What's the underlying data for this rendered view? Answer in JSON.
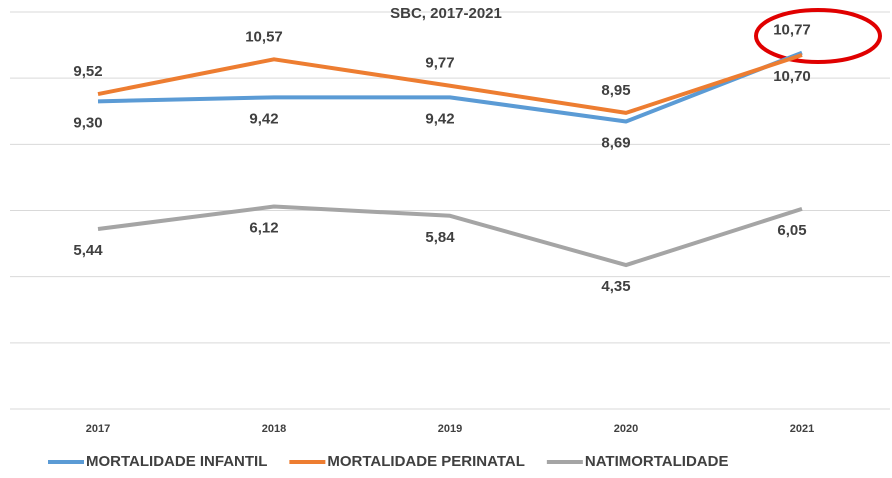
{
  "chart_data": {
    "type": "line",
    "title": "SBC, 2017-2021",
    "categories": [
      "2017",
      "2018",
      "2019",
      "2020",
      "2021"
    ],
    "series": [
      {
        "name": "MORTALIDADE INFANTIL",
        "color": "#5b9bd5",
        "values": [
          9.3,
          9.42,
          9.42,
          8.69,
          10.77
        ],
        "value_labels": [
          "9,30",
          "9,42",
          "9,42",
          "8,69",
          "10,77"
        ]
      },
      {
        "name": "MORTALIDADE PERINATAL",
        "color": "#ed7d31",
        "values": [
          9.52,
          10.57,
          9.77,
          8.95,
          10.7
        ],
        "value_labels": [
          "9,52",
          "10,57",
          "9,77",
          "8,95",
          "10,70"
        ]
      },
      {
        "name": "NATIMORTALIDADE",
        "color": "#a5a5a5",
        "values": [
          5.44,
          6.12,
          5.84,
          4.35,
          6.05
        ],
        "value_labels": [
          "5,44",
          "6,12",
          "5,84",
          "4,35",
          "6,05"
        ]
      }
    ],
    "ylim": [
      0,
      12
    ],
    "yticks": [
      0,
      2,
      4,
      6,
      8,
      10,
      12
    ],
    "grid": true
  }
}
